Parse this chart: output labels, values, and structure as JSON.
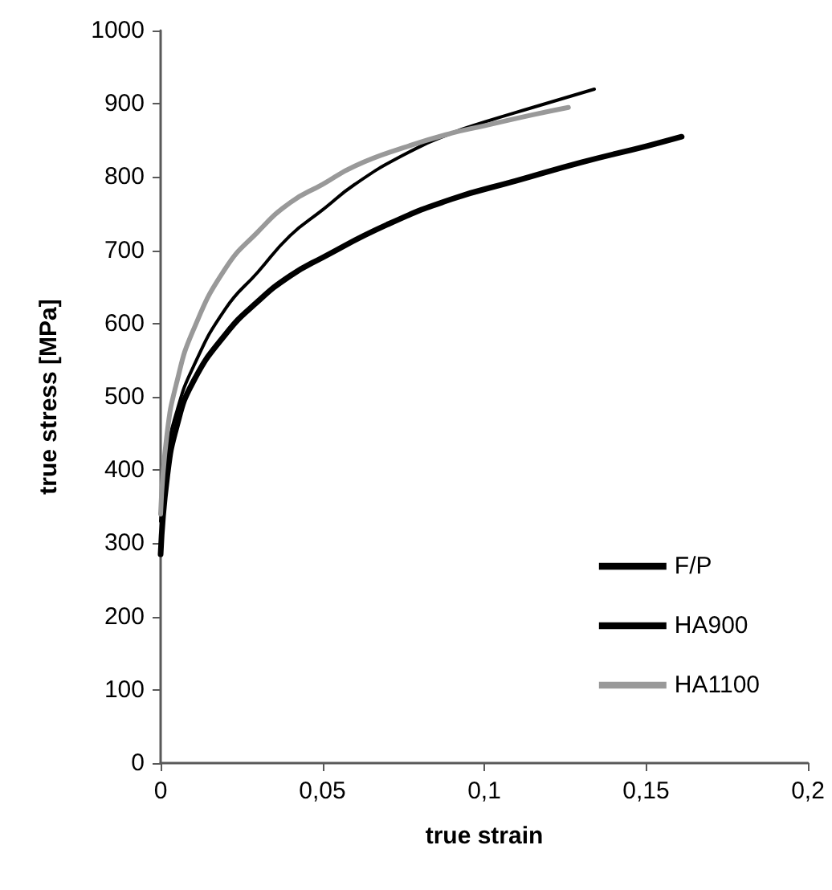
{
  "chart_data": {
    "type": "line",
    "xlabel": "true strain",
    "ylabel": "true stress [MPa]",
    "xlim": [
      0,
      0.2
    ],
    "xticks": [
      {
        "value": 0,
        "label": "0"
      },
      {
        "value": 0.05,
        "label": "0,05"
      },
      {
        "value": 0.1,
        "label": "0,1"
      },
      {
        "value": 0.15,
        "label": "0,15"
      },
      {
        "value": 0.2,
        "label": "0,2"
      }
    ],
    "ylim": [
      0,
      1000
    ],
    "yticks": [
      0,
      100,
      200,
      300,
      400,
      500,
      600,
      700,
      800,
      900,
      1000
    ],
    "grid": false,
    "legend": "bottom right",
    "marker": "none",
    "line_style": "solid",
    "series": [
      {
        "name": "F/P",
        "color": "#000000",
        "x": [
          0,
          0.002,
          0.005,
          0.01,
          0.02,
          0.03,
          0.04,
          0.05,
          0.07,
          0.09,
          0.11,
          0.13,
          0.15,
          0.161
        ],
        "values": [
          285,
          390,
          460,
          520,
          585,
          630,
          665,
          690,
          735,
          770,
          795,
          820,
          842,
          855
        ]
      },
      {
        "name": "HA900",
        "color": "#000000",
        "x": [
          0,
          0.002,
          0.005,
          0.01,
          0.02,
          0.03,
          0.04,
          0.05,
          0.06,
          0.075,
          0.09,
          0.1,
          0.115,
          0.134
        ],
        "values": [
          330,
          420,
          480,
          540,
          620,
          670,
          720,
          755,
          790,
          830,
          860,
          875,
          895,
          920
        ]
      },
      {
        "name": "HA1100",
        "color": "#999999",
        "x": [
          0,
          0.002,
          0.005,
          0.01,
          0.02,
          0.03,
          0.04,
          0.05,
          0.06,
          0.075,
          0.09,
          0.1,
          0.115,
          0.126
        ],
        "values": [
          340,
          450,
          520,
          590,
          675,
          725,
          765,
          790,
          815,
          840,
          860,
          870,
          885,
          895
        ]
      }
    ]
  }
}
